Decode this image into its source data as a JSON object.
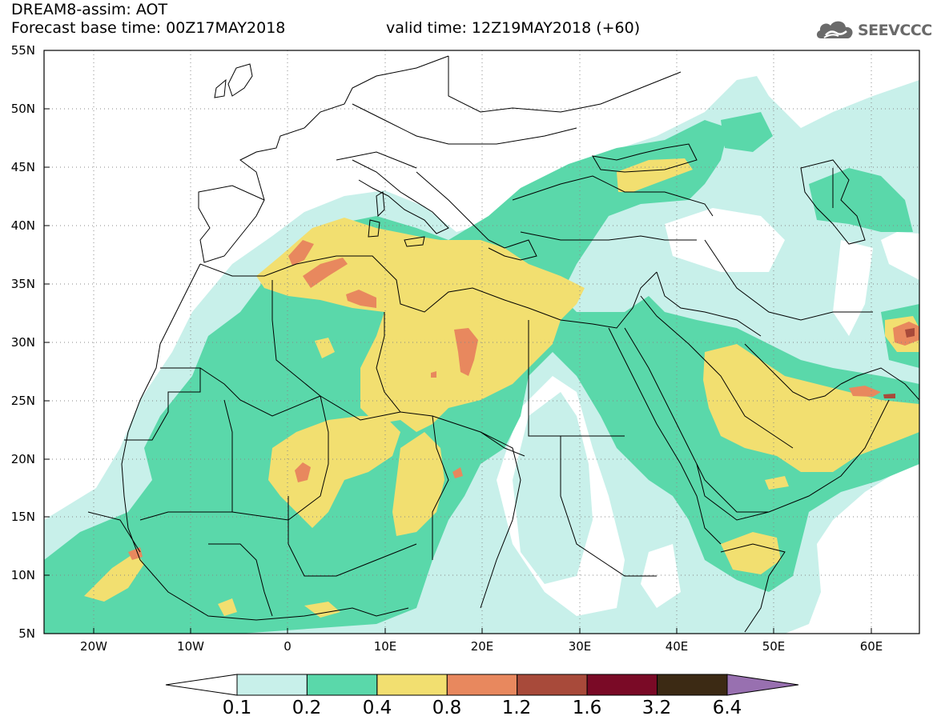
{
  "header": {
    "line1": "DREAM8-assim: AOT",
    "base_label": "Forecast base time: 00Z17MAY2018",
    "valid_label": "valid time: 12Z19MAY2018 (+60)"
  },
  "logo": {
    "text": "SEEVCCC",
    "icon": "cloud-logo-icon"
  },
  "map": {
    "lat_range": [
      5,
      55
    ],
    "lon_range": [
      -25,
      65
    ],
    "graticule": "dotted 5-degree grid",
    "lat_ticks": [
      "55N",
      "50N",
      "45N",
      "40N",
      "35N",
      "30N",
      "25N",
      "20N",
      "15N",
      "10N",
      "5N"
    ],
    "lon_ticks": [
      "20W",
      "10W",
      "0",
      "10E",
      "20E",
      "30E",
      "40E",
      "50E",
      "60E"
    ]
  },
  "colorbar": {
    "levels": [
      "0.1",
      "0.2",
      "0.4",
      "0.8",
      "1.2",
      "1.6",
      "3.2",
      "6.4"
    ],
    "colors": [
      "#c8f0ea",
      "#5ad8aa",
      "#f2df70",
      "#e8885e",
      "#a84a3a",
      "#7a0a26",
      "#3c2a14"
    ],
    "under_color": "#ffffff",
    "over_color": "#9870b0"
  }
}
